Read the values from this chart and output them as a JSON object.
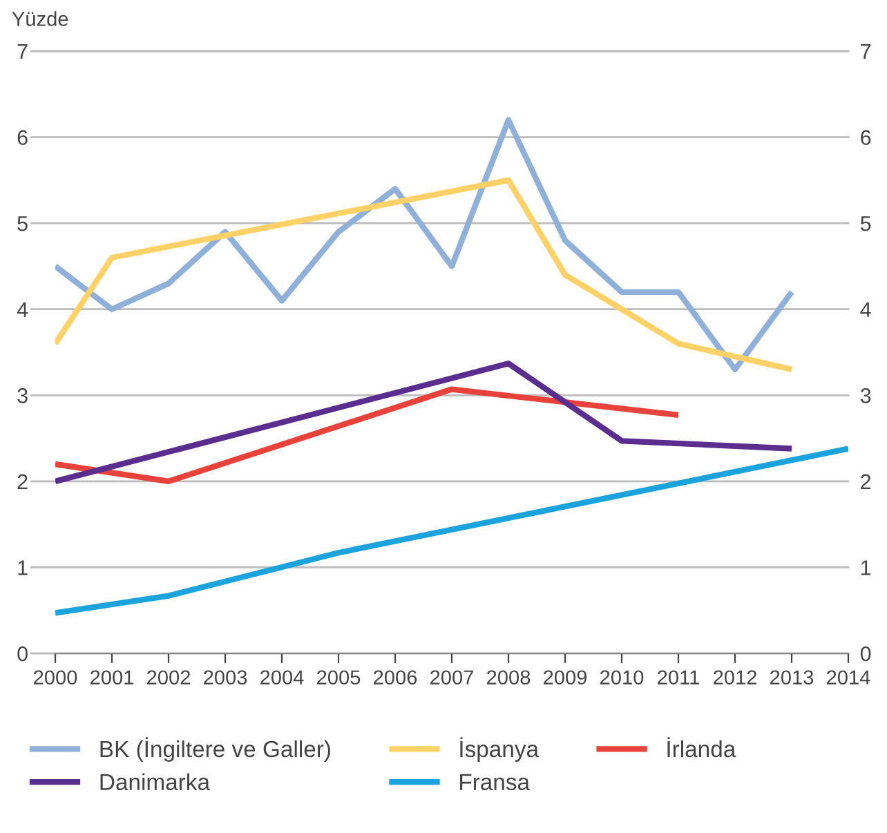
{
  "chart_data": {
    "type": "line",
    "ylabel": "Yüzde",
    "xlim": [
      2000,
      2014
    ],
    "xticks": [
      2000,
      2001,
      2002,
      2003,
      2004,
      2005,
      2006,
      2007,
      2008,
      2009,
      2010,
      2011,
      2012,
      2013,
      2014
    ],
    "ylim": [
      0,
      7
    ],
    "yticks": [
      0,
      1,
      2,
      3,
      4,
      5,
      6,
      7
    ],
    "y2lim": [
      0,
      7
    ],
    "y2ticks": [
      0,
      1,
      2,
      3,
      4,
      5,
      6,
      7
    ],
    "grid": "y",
    "legend": "bottom",
    "marker": "none",
    "line_style": "solid",
    "series": [
      {
        "name": "BK (İngiltere ve Galler)",
        "color": "#8fb0d9",
        "x": [
          2000,
          2001,
          2002,
          2003,
          2004,
          2005,
          2006,
          2007,
          2008,
          2009,
          2010,
          2011,
          2012,
          2013
        ],
        "values": [
          4.5,
          4.0,
          4.3,
          4.9,
          4.1,
          4.9,
          5.4,
          4.5,
          6.2,
          4.8,
          4.2,
          4.2,
          3.3,
          4.2
        ]
      },
      {
        "name": "İspanya",
        "color": "#ffd166",
        "x": [
          2000,
          2001,
          2008,
          2009,
          2011,
          2013
        ],
        "values": [
          3.6,
          4.6,
          5.5,
          4.4,
          3.6,
          3.3
        ]
      },
      {
        "name": "İrlanda",
        "color": "#e8423a",
        "x": [
          2000,
          2002,
          2007,
          2011
        ],
        "values": [
          2.2,
          2.0,
          3.07,
          2.77
        ]
      },
      {
        "name": "Danimarka",
        "color": "#5b2d8e",
        "x": [
          2000,
          2008,
          2010,
          2013
        ],
        "values": [
          2.0,
          3.37,
          2.47,
          2.38
        ]
      },
      {
        "name": "Fransa",
        "color": "#1aa3dc",
        "x": [
          2000,
          2002,
          2005,
          2014
        ],
        "values": [
          0.47,
          0.67,
          1.17,
          2.38
        ]
      }
    ]
  }
}
